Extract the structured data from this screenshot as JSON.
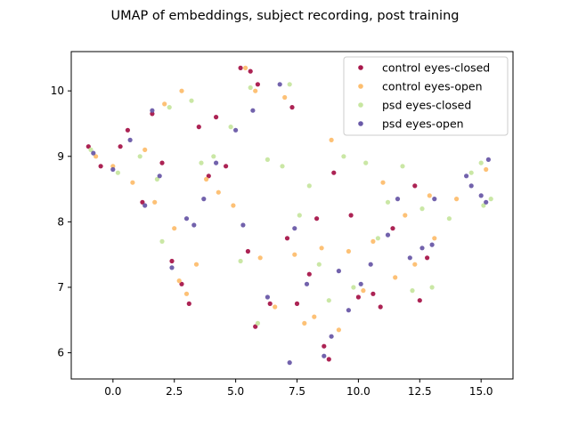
{
  "chart_data": {
    "type": "scatter",
    "title": "UMAP of embeddings, subject recording, post training",
    "xlabel": "",
    "ylabel": "",
    "xlim": [
      -1.7,
      16.3
    ],
    "ylim": [
      5.6,
      10.6
    ],
    "xticks": [
      0.0,
      2.5,
      5.0,
      7.5,
      10.0,
      12.5,
      15.0
    ],
    "xtick_labels": [
      "0.0",
      "2.5",
      "5.0",
      "7.5",
      "10.0",
      "12.5",
      "15.0"
    ],
    "yticks": [
      6,
      7,
      8,
      9,
      10
    ],
    "ytick_labels": [
      "6",
      "7",
      "8",
      "9",
      "10"
    ],
    "grid": false,
    "legend_position": "top-right",
    "series": [
      {
        "name": "control eyes-closed",
        "color": "#a8174b",
        "points": [
          [
            -1.0,
            9.15
          ],
          [
            -0.5,
            8.85
          ],
          [
            0.3,
            9.15
          ],
          [
            0.6,
            9.4
          ],
          [
            1.2,
            8.3
          ],
          [
            1.6,
            9.65
          ],
          [
            2.0,
            8.9
          ],
          [
            2.4,
            7.4
          ],
          [
            2.8,
            7.05
          ],
          [
            3.1,
            6.75
          ],
          [
            3.5,
            9.45
          ],
          [
            3.9,
            8.7
          ],
          [
            4.2,
            9.6
          ],
          [
            4.6,
            8.85
          ],
          [
            5.2,
            10.35
          ],
          [
            5.6,
            10.3
          ],
          [
            5.9,
            10.1
          ],
          [
            5.5,
            7.55
          ],
          [
            5.8,
            6.4
          ],
          [
            6.4,
            6.75
          ],
          [
            7.1,
            7.75
          ],
          [
            7.3,
            9.75
          ],
          [
            7.5,
            6.75
          ],
          [
            8.0,
            7.2
          ],
          [
            8.3,
            8.05
          ],
          [
            8.6,
            6.1
          ],
          [
            8.8,
            5.9
          ],
          [
            9.0,
            8.75
          ],
          [
            9.7,
            8.1
          ],
          [
            10.0,
            6.85
          ],
          [
            10.6,
            6.9
          ],
          [
            10.9,
            6.7
          ],
          [
            11.4,
            7.9
          ],
          [
            12.3,
            8.55
          ],
          [
            12.5,
            6.8
          ],
          [
            12.8,
            7.45
          ]
        ]
      },
      {
        "name": "control eyes-open",
        "color": "#fdbe6f",
        "points": [
          [
            -0.7,
            9.0
          ],
          [
            0.0,
            8.85
          ],
          [
            0.8,
            8.6
          ],
          [
            1.3,
            9.1
          ],
          [
            1.7,
            8.3
          ],
          [
            2.1,
            9.8
          ],
          [
            2.5,
            7.9
          ],
          [
            2.7,
            7.1
          ],
          [
            2.8,
            10.0
          ],
          [
            3.0,
            6.9
          ],
          [
            3.4,
            7.35
          ],
          [
            3.8,
            8.65
          ],
          [
            4.3,
            8.45
          ],
          [
            4.9,
            8.25
          ],
          [
            5.4,
            10.35
          ],
          [
            5.8,
            10.0
          ],
          [
            6.0,
            7.45
          ],
          [
            6.6,
            6.7
          ],
          [
            7.0,
            9.9
          ],
          [
            7.4,
            7.5
          ],
          [
            7.8,
            6.45
          ],
          [
            8.2,
            6.55
          ],
          [
            8.5,
            7.6
          ],
          [
            8.9,
            9.25
          ],
          [
            9.2,
            6.35
          ],
          [
            9.6,
            7.55
          ],
          [
            10.2,
            6.95
          ],
          [
            10.6,
            7.7
          ],
          [
            11.0,
            8.6
          ],
          [
            11.5,
            7.15
          ],
          [
            11.9,
            8.1
          ],
          [
            12.3,
            7.35
          ],
          [
            12.9,
            8.4
          ],
          [
            13.1,
            7.75
          ],
          [
            14.0,
            8.35
          ],
          [
            15.2,
            8.8
          ]
        ]
      },
      {
        "name": "psd eyes-closed",
        "color": "#c7e6a0",
        "points": [
          [
            -0.9,
            9.1
          ],
          [
            0.2,
            8.75
          ],
          [
            1.1,
            9.0
          ],
          [
            1.8,
            8.65
          ],
          [
            2.0,
            7.7
          ],
          [
            2.3,
            9.75
          ],
          [
            3.2,
            9.85
          ],
          [
            3.6,
            8.9
          ],
          [
            4.1,
            9.0
          ],
          [
            4.8,
            9.45
          ],
          [
            5.2,
            7.4
          ],
          [
            5.6,
            10.05
          ],
          [
            5.9,
            6.45
          ],
          [
            6.3,
            8.95
          ],
          [
            6.9,
            8.85
          ],
          [
            7.2,
            10.1
          ],
          [
            7.6,
            8.1
          ],
          [
            8.0,
            8.55
          ],
          [
            8.4,
            7.35
          ],
          [
            8.8,
            6.8
          ],
          [
            9.4,
            9.0
          ],
          [
            9.8,
            7.0
          ],
          [
            10.3,
            8.9
          ],
          [
            10.8,
            7.75
          ],
          [
            11.2,
            8.3
          ],
          [
            11.8,
            8.85
          ],
          [
            12.2,
            6.95
          ],
          [
            12.6,
            8.2
          ],
          [
            13.0,
            7.0
          ],
          [
            13.7,
            8.05
          ],
          [
            14.6,
            8.75
          ],
          [
            15.0,
            8.9
          ],
          [
            15.4,
            8.35
          ],
          [
            15.1,
            8.25
          ]
        ]
      },
      {
        "name": "psd eyes-open",
        "color": "#6a5aa8",
        "points": [
          [
            -0.8,
            9.05
          ],
          [
            0.0,
            8.8
          ],
          [
            0.7,
            9.25
          ],
          [
            1.3,
            8.25
          ],
          [
            1.6,
            9.7
          ],
          [
            1.9,
            8.7
          ],
          [
            2.4,
            7.3
          ],
          [
            3.0,
            8.05
          ],
          [
            3.3,
            7.95
          ],
          [
            3.7,
            8.35
          ],
          [
            4.2,
            8.9
          ],
          [
            5.0,
            9.4
          ],
          [
            5.3,
            7.95
          ],
          [
            5.7,
            9.7
          ],
          [
            6.3,
            6.85
          ],
          [
            6.8,
            10.1
          ],
          [
            7.2,
            5.85
          ],
          [
            7.4,
            7.9
          ],
          [
            7.9,
            7.05
          ],
          [
            8.6,
            5.95
          ],
          [
            8.9,
            6.25
          ],
          [
            9.2,
            7.25
          ],
          [
            9.6,
            6.65
          ],
          [
            10.1,
            7.05
          ],
          [
            10.5,
            7.35
          ],
          [
            11.2,
            7.8
          ],
          [
            11.6,
            8.35
          ],
          [
            12.1,
            7.45
          ],
          [
            12.6,
            7.6
          ],
          [
            13.0,
            7.65
          ],
          [
            14.6,
            8.55
          ],
          [
            15.0,
            8.4
          ],
          [
            15.2,
            8.3
          ],
          [
            15.3,
            8.95
          ],
          [
            14.4,
            8.7
          ],
          [
            13.1,
            8.35
          ]
        ]
      }
    ]
  }
}
